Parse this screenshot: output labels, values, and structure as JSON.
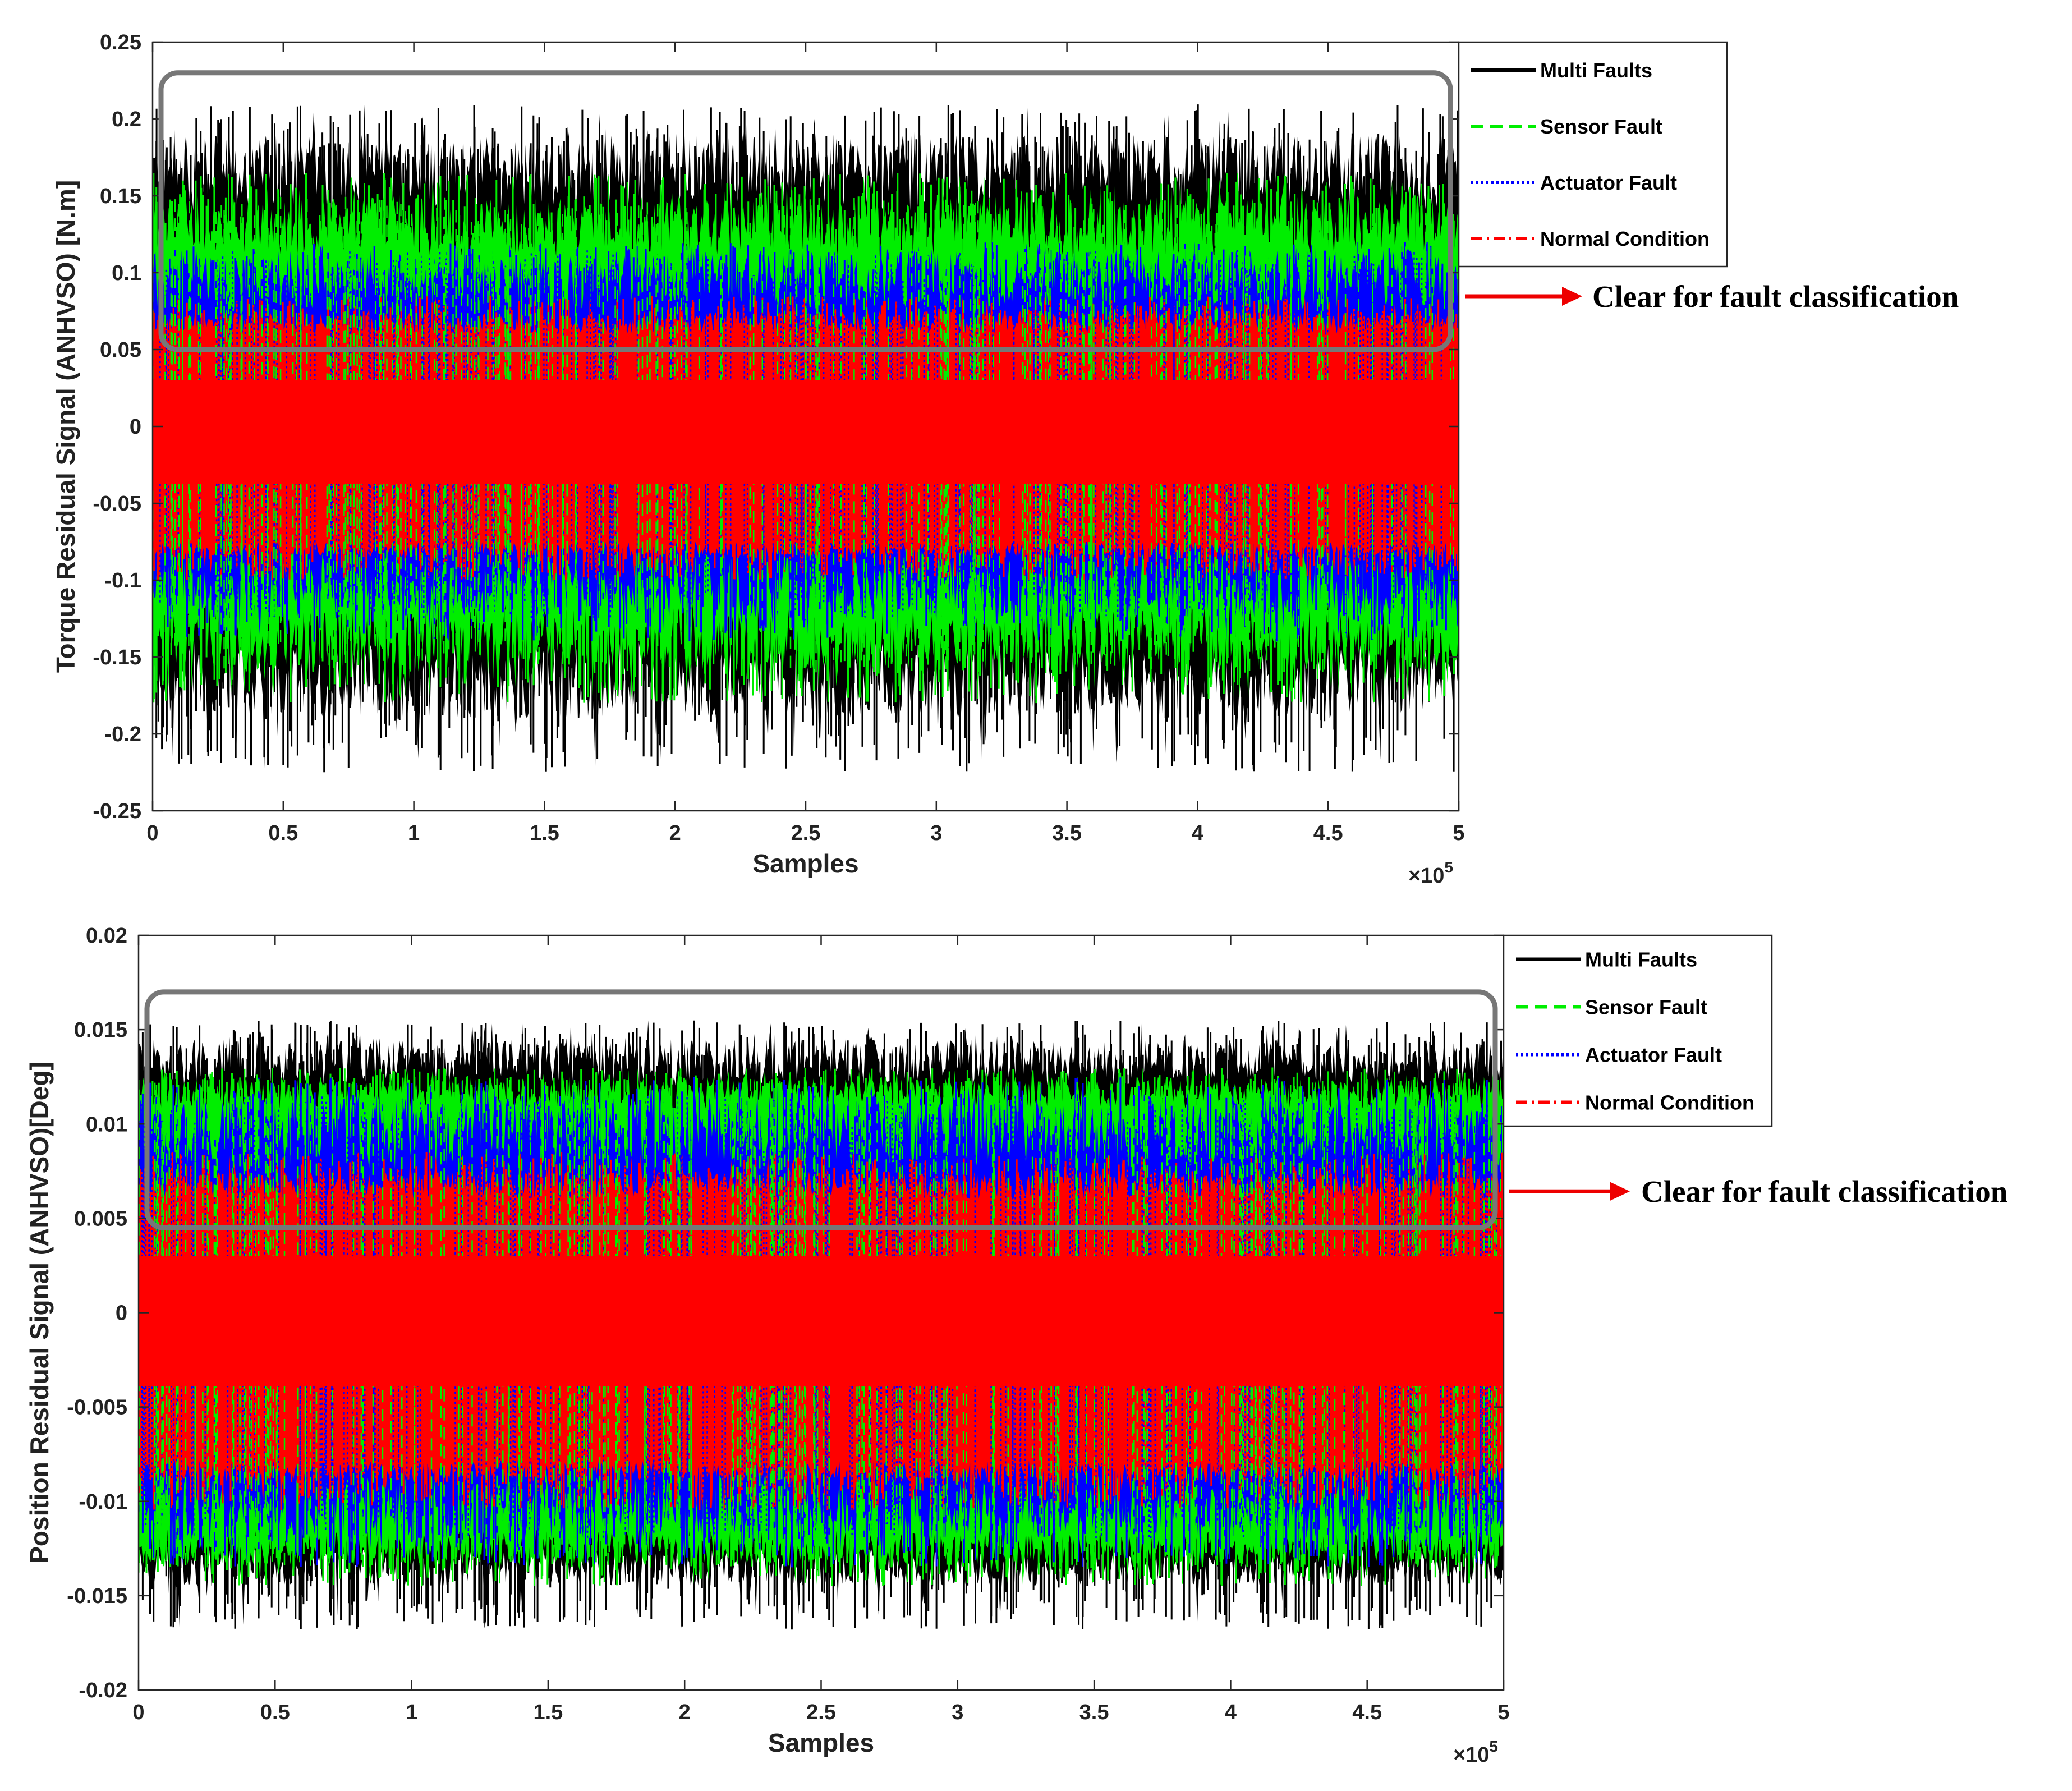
{
  "colors": {
    "multi": "#000000",
    "sensor": "#00ee00",
    "actuator": "#0000ff",
    "normal": "#ff0000",
    "highlight_box": "#777777",
    "arrow": "#ee0000"
  },
  "chart_data": [
    {
      "type": "line",
      "title": "",
      "xlabel": "Samples",
      "ylabel": "Torque Residual Signal (ANHVSO) [N.m]",
      "x_multiplier": "×10",
      "x_multiplier_exp": "5",
      "xlim": [
        0,
        5
      ],
      "ylim": [
        -0.25,
        0.25
      ],
      "xticks": [
        0,
        0.5,
        1,
        1.5,
        2,
        2.5,
        3,
        3.5,
        4,
        4.5,
        5
      ],
      "xtick_labels": [
        "0",
        "0.5",
        "1",
        "1.5",
        "2",
        "2.5",
        "3",
        "3.5",
        "4",
        "4.5",
        "5"
      ],
      "yticks": [
        -0.25,
        -0.2,
        -0.15,
        -0.1,
        -0.05,
        0,
        0.05,
        0.1,
        0.15,
        0.2,
        0.25
      ],
      "ytick_labels": [
        "-0.25",
        "-0.2",
        "-0.15",
        "-0.1",
        "-0.05",
        "0",
        "0.05",
        "0.1",
        "0.15",
        "0.2",
        "0.25"
      ],
      "legend_position": "top-right, outside",
      "series": [
        {
          "name": "Multi Faults",
          "style": "solid",
          "color": "#000000",
          "upper": [
            0.14,
            0.19
          ],
          "lower": [
            -0.19,
            -0.14
          ],
          "peak": 0.21,
          "trough": -0.225
        },
        {
          "name": "Sensor Fault",
          "style": "dashed",
          "color": "#00ee00",
          "upper": [
            0.11,
            0.15
          ],
          "lower": [
            -0.16,
            -0.115
          ],
          "peak": 0.165,
          "trough": -0.18
        },
        {
          "name": "Actuator Fault",
          "style": "dotted",
          "color": "#0000ff",
          "upper": [
            0.075,
            0.115
          ],
          "lower": [
            -0.125,
            -0.08
          ],
          "peak": 0.12,
          "trough": -0.14
        },
        {
          "name": "Normal Condition",
          "style": "dash-dot",
          "color": "#ff0000",
          "upper": [
            0.06,
            0.075
          ],
          "lower": [
            -0.085,
            -0.075
          ],
          "peak": 0.085,
          "trough": -0.1
        }
      ],
      "annotation": {
        "text": "Clear for fault classification",
        "box_y_range": [
          0.05,
          0.23
        ]
      }
    },
    {
      "type": "line",
      "title": "",
      "xlabel": "Samples",
      "ylabel": "Position Residual Signal (ANHVSO)[Deg]",
      "x_multiplier": "×10",
      "x_multiplier_exp": "5",
      "xlim": [
        0,
        5
      ],
      "ylim": [
        -0.02,
        0.02
      ],
      "xticks": [
        0,
        0.5,
        1,
        1.5,
        2,
        2.5,
        3,
        3.5,
        4,
        4.5,
        5
      ],
      "xtick_labels": [
        "0",
        "0.5",
        "1",
        "1.5",
        "2",
        "2.5",
        "3",
        "3.5",
        "4",
        "4.5",
        "5"
      ],
      "yticks": [
        -0.02,
        -0.015,
        -0.01,
        -0.005,
        0,
        0.005,
        0.01,
        0.015,
        0.02
      ],
      "ytick_labels": [
        "-0.02",
        "-0.015",
        "-0.01",
        "-0.005",
        "0",
        "0.005",
        "0.01",
        "0.015",
        "0.02"
      ],
      "legend_position": "top-right, outside",
      "series": [
        {
          "name": "Multi Faults",
          "style": "solid",
          "color": "#000000",
          "upper": [
            0.012,
            0.0145
          ],
          "lower": [
            -0.0145,
            -0.0125
          ],
          "peak": 0.0155,
          "trough": -0.0168
        },
        {
          "name": "Sensor Fault",
          "style": "dashed",
          "color": "#00ee00",
          "upper": [
            0.0108,
            0.0125
          ],
          "lower": [
            -0.0135,
            -0.0115
          ],
          "peak": 0.013,
          "trough": -0.0145
        },
        {
          "name": "Actuator Fault",
          "style": "dotted",
          "color": "#0000ff",
          "upper": [
            0.0075,
            0.0115
          ],
          "lower": [
            -0.012,
            -0.0085
          ],
          "peak": 0.0125,
          "trough": -0.0135
        },
        {
          "name": "Normal Condition",
          "style": "dash-dot",
          "color": "#ff0000",
          "upper": [
            0.006,
            0.0075
          ],
          "lower": [
            -0.009,
            -0.0078
          ],
          "peak": 0.0085,
          "trough": -0.0105
        }
      ],
      "annotation": {
        "text": "Clear for fault classification",
        "box_y_range": [
          0.0045,
          0.017
        ]
      }
    }
  ]
}
